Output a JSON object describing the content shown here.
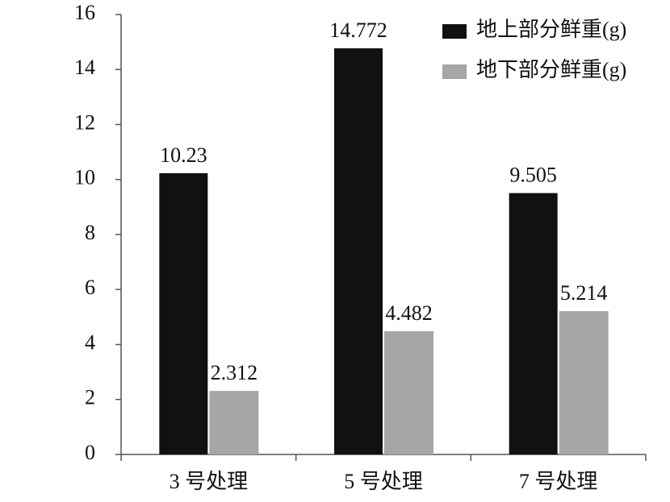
{
  "chart_data": {
    "type": "bar",
    "categories": [
      "3 号处理",
      "5 号处理",
      "7 号处理"
    ],
    "series": [
      {
        "name": "地上部分鲜重(g)",
        "color": "#111111",
        "values": [
          10.23,
          14.772,
          9.505
        ]
      },
      {
        "name": "地下部分鲜重(g)",
        "color": "#a6a6a6",
        "values": [
          2.312,
          4.482,
          5.214
        ]
      }
    ],
    "ylim": [
      0,
      16
    ],
    "yticks": [
      0,
      2,
      4,
      6,
      8,
      10,
      12,
      14,
      16
    ],
    "legend": "top-right"
  }
}
